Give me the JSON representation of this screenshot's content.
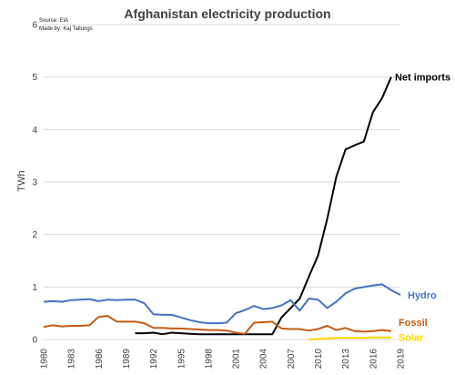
{
  "chart_data": {
    "type": "line",
    "title": "Afghanistan electricity production",
    "source": "Source: EIA",
    "made_by": "Made by: Kaj Tallungs",
    "ylabel": "TWh",
    "xlabel": "",
    "xlim": [
      1980,
      2019
    ],
    "ylim": [
      0,
      6
    ],
    "yticks": [
      0,
      1,
      2,
      3,
      4,
      5,
      6
    ],
    "xticks": [
      1980,
      1983,
      1986,
      1989,
      1992,
      1995,
      1998,
      2001,
      2004,
      2007,
      2010,
      2013,
      2016,
      2019
    ],
    "grid": true,
    "legend": "inline-right",
    "series": [
      {
        "name": "Net imports",
        "color": "#000000",
        "x": [
          1990,
          1991,
          1992,
          1993,
          1994,
          1995,
          1996,
          1997,
          1998,
          1999,
          2000,
          2001,
          2002,
          2003,
          2004,
          2005,
          2006,
          2007,
          2008,
          2009,
          2010,
          2011,
          2012,
          2013,
          2014,
          2015,
          2016,
          2017,
          2018
        ],
        "values": [
          0.12,
          0.12,
          0.13,
          0.1,
          0.13,
          0.12,
          0.11,
          0.1,
          0.1,
          0.1,
          0.1,
          0.1,
          0.1,
          0.1,
          0.1,
          0.1,
          0.42,
          0.6,
          0.78,
          1.2,
          1.6,
          2.3,
          3.1,
          3.62,
          3.7,
          3.77,
          4.33,
          4.6,
          5.0
        ]
      },
      {
        "name": "Hydro",
        "color": "#4472c4",
        "x": [
          1980,
          1981,
          1982,
          1983,
          1984,
          1985,
          1986,
          1987,
          1988,
          1989,
          1990,
          1991,
          1992,
          1993,
          1994,
          1995,
          1996,
          1997,
          1998,
          1999,
          2000,
          2001,
          2002,
          2003,
          2004,
          2005,
          2006,
          2007,
          2008,
          2009,
          2010,
          2011,
          2012,
          2013,
          2014,
          2015,
          2016,
          2017,
          2018,
          2019
        ],
        "values": [
          0.72,
          0.73,
          0.72,
          0.75,
          0.76,
          0.77,
          0.73,
          0.76,
          0.75,
          0.76,
          0.76,
          0.69,
          0.48,
          0.47,
          0.47,
          0.42,
          0.37,
          0.33,
          0.31,
          0.31,
          0.32,
          0.5,
          0.56,
          0.64,
          0.58,
          0.6,
          0.65,
          0.75,
          0.55,
          0.78,
          0.76,
          0.6,
          0.72,
          0.88,
          0.97,
          1.0,
          1.03,
          1.05,
          0.94,
          0.85
        ]
      },
      {
        "name": "Fossil",
        "color": "#c55a11",
        "x": [
          1980,
          1981,
          1982,
          1983,
          1984,
          1985,
          1986,
          1987,
          1988,
          1989,
          1990,
          1991,
          1992,
          1993,
          1994,
          1995,
          1996,
          1997,
          1998,
          1999,
          2000,
          2001,
          2002,
          2003,
          2004,
          2005,
          2006,
          2007,
          2008,
          2009,
          2010,
          2011,
          2012,
          2013,
          2014,
          2015,
          2016,
          2017,
          2018
        ],
        "values": [
          0.24,
          0.27,
          0.25,
          0.26,
          0.26,
          0.27,
          0.43,
          0.45,
          0.34,
          0.34,
          0.34,
          0.31,
          0.22,
          0.22,
          0.21,
          0.21,
          0.2,
          0.19,
          0.18,
          0.18,
          0.17,
          0.13,
          0.11,
          0.32,
          0.33,
          0.34,
          0.21,
          0.2,
          0.2,
          0.17,
          0.2,
          0.26,
          0.18,
          0.22,
          0.16,
          0.15,
          0.16,
          0.18,
          0.16
        ]
      },
      {
        "name": "Solar",
        "color": "#ffd700",
        "x": [
          2009,
          2010,
          2011,
          2012,
          2013,
          2014,
          2015,
          2016,
          2017,
          2018
        ],
        "values": [
          0.0,
          0.01,
          0.02,
          0.03,
          0.03,
          0.03,
          0.03,
          0.04,
          0.04,
          0.04
        ]
      }
    ]
  }
}
